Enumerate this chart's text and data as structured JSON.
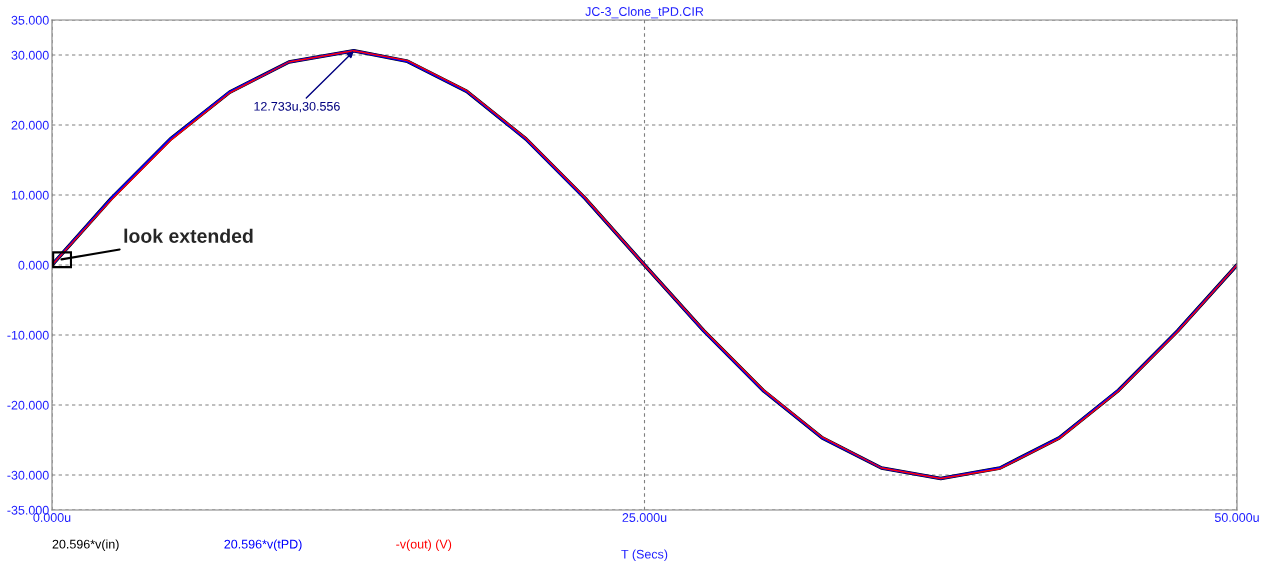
{
  "chart_data": {
    "type": "line",
    "title": "JC-3_Clone_tPD.CIR",
    "xlabel": "T (Secs)",
    "x": [
      0,
      2.5,
      5,
      7.5,
      10,
      12.733,
      15,
      17.5,
      20,
      22.5,
      25,
      27.5,
      30,
      32.5,
      35,
      37.5,
      40,
      42.5,
      45,
      47.5,
      50
    ],
    "series": [
      {
        "name": "20.596*v(in)",
        "color": "#000000",
        "values": [
          0,
          9.5,
          18.0,
          24.7,
          29.0,
          30.6,
          29.1,
          24.8,
          18.0,
          9.5,
          0,
          -9.4,
          -17.9,
          -24.7,
          -29.0,
          -30.5,
          -29.0,
          -24.7,
          -17.9,
          -9.4,
          0
        ]
      },
      {
        "name": "20.596*v(tPD)",
        "color": "#0000ff",
        "values": [
          0,
          9.5,
          18.0,
          24.7,
          29.0,
          30.6,
          29.1,
          24.8,
          18.0,
          9.5,
          0,
          -9.4,
          -17.9,
          -24.7,
          -29.0,
          -30.5,
          -29.0,
          -24.7,
          -17.9,
          -9.4,
          0
        ]
      },
      {
        "name": "-v(out) (V)",
        "color": "#ff0000",
        "values": [
          0,
          9.3,
          17.8,
          24.6,
          29.0,
          30.6,
          29.2,
          24.9,
          18.1,
          9.6,
          0,
          -9.3,
          -17.8,
          -24.6,
          -29.0,
          -30.5,
          -29.1,
          -24.8,
          -18.0,
          -9.5,
          0
        ]
      }
    ],
    "xlim": [
      0,
      50
    ],
    "xticks": [
      {
        "value": 0,
        "label": "0.000u"
      },
      {
        "value": 25,
        "label": "25.000u"
      },
      {
        "value": 50,
        "label": "50.000u"
      }
    ],
    "ylim": [
      -35,
      35
    ],
    "yticks": [
      {
        "value": -35,
        "label": "-35.000"
      },
      {
        "value": -30,
        "label": "-30.000"
      },
      {
        "value": -20,
        "label": "-20.000"
      },
      {
        "value": -10,
        "label": "-10.000"
      },
      {
        "value": 0,
        "label": "0.000"
      },
      {
        "value": 10,
        "label": "10.000"
      },
      {
        "value": 20,
        "label": "20.000"
      },
      {
        "value": 30,
        "label": "30.000"
      },
      {
        "value": 35,
        "label": "35.000"
      }
    ],
    "grid": true,
    "legend": "bottom",
    "line_style": "solid",
    "marker": "none",
    "annotations": [
      {
        "text": "12.733u,30.556",
        "x": 12.733,
        "y": 30.556
      },
      {
        "text": "look extended",
        "x": 0.4,
        "y": 0.8
      }
    ]
  }
}
